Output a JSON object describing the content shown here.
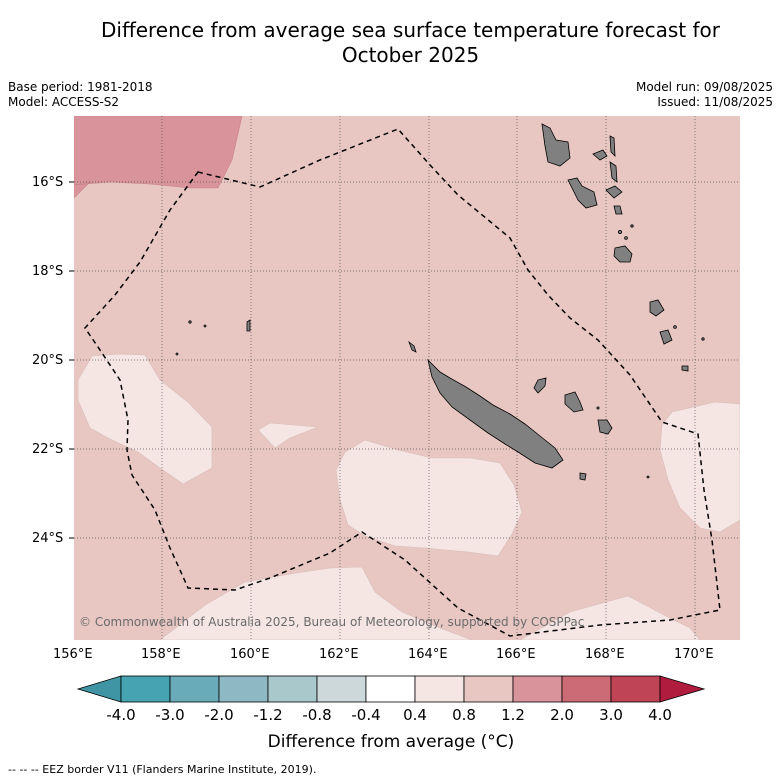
{
  "title_line1": "Difference from average sea surface temperature forecast for",
  "title_line2": "October 2025",
  "meta": {
    "base_period": "Base period: 1981-2018",
    "model": "Model: ACCESS-S2",
    "model_run": "Model run: 09/08/2025",
    "issued": "Issued: 11/08/2025"
  },
  "copyright": "© Commonwealth of Australia 2025, Bureau of Meteorology, supported by COSPPac",
  "lon_labels": [
    "156°E",
    "158°E",
    "160°E",
    "162°E",
    "164°E",
    "166°E",
    "168°E",
    "170°E"
  ],
  "lat_labels": [
    "16°S",
    "18°S",
    "20°S",
    "22°S",
    "24°S"
  ],
  "colorbar": {
    "ticks": [
      "-4.0",
      "-3.0",
      "-2.0",
      "-1.2",
      "-0.8",
      "-0.4",
      "0.4",
      "0.8",
      "1.2",
      "2.0",
      "3.0",
      "4.0"
    ],
    "colors": [
      "#3f95a3",
      "#46a3b2",
      "#6aabba",
      "#8eb8c3",
      "#a8c8cc",
      "#cdd8da",
      "#ffffff",
      "#f5e6e4",
      "#e8c7c2",
      "#d9939a",
      "#cc6a75",
      "#bf4455",
      "#b01c3e"
    ],
    "title": "Difference from average (°C)"
  },
  "footnote": "--  --  -- EEZ border V11 (Flanders Marine Institute, 2019).",
  "colors": {
    "warm_0_4_0_8": "#f5e6e4",
    "warm_0_8_1_2": "#e8c7c2",
    "warm_1_2_2_0": "#d9939a",
    "land": "#808080"
  }
}
